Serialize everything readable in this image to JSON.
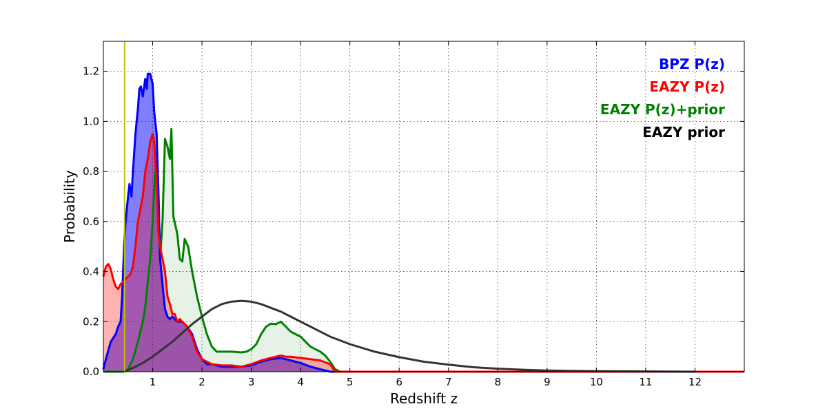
{
  "chart_data": {
    "type": "area",
    "title": "",
    "xlabel": "Redshift z",
    "ylabel": "Probability",
    "xlim": [
      0,
      13
    ],
    "ylim": [
      0,
      1.32
    ],
    "grid": true,
    "legend_position": "top-right",
    "xticks": [
      1,
      2,
      3,
      4,
      5,
      6,
      7,
      8,
      9,
      10,
      11,
      12
    ],
    "yticks": [
      0.0,
      0.2,
      0.4,
      0.6,
      0.8,
      1.0,
      1.2
    ],
    "vline": {
      "x": 0.43,
      "color": "#bfbf00"
    },
    "series": [
      {
        "name": "EAZY P(z)+prior",
        "color": "#008000",
        "fill": "#008000",
        "fill_opacity": 0.1,
        "points": [
          [
            0,
            0
          ],
          [
            0.4,
            0
          ],
          [
            0.5,
            0.01
          ],
          [
            0.6,
            0.05
          ],
          [
            0.7,
            0.12
          ],
          [
            0.8,
            0.2
          ],
          [
            0.85,
            0.26
          ],
          [
            0.9,
            0.36
          ],
          [
            0.95,
            0.45
          ],
          [
            1.0,
            0.6
          ],
          [
            1.05,
            0.8
          ],
          [
            1.08,
            0.82
          ],
          [
            1.12,
            0.6
          ],
          [
            1.15,
            0.45
          ],
          [
            1.2,
            0.6
          ],
          [
            1.25,
            0.93
          ],
          [
            1.3,
            0.9
          ],
          [
            1.35,
            0.85
          ],
          [
            1.38,
            0.97
          ],
          [
            1.42,
            0.62
          ],
          [
            1.5,
            0.55
          ],
          [
            1.55,
            0.45
          ],
          [
            1.6,
            0.44
          ],
          [
            1.65,
            0.53
          ],
          [
            1.72,
            0.5
          ],
          [
            1.8,
            0.4
          ],
          [
            1.9,
            0.3
          ],
          [
            2.0,
            0.22
          ],
          [
            2.1,
            0.15
          ],
          [
            2.2,
            0.1
          ],
          [
            2.3,
            0.08
          ],
          [
            2.4,
            0.08
          ],
          [
            2.6,
            0.08
          ],
          [
            2.8,
            0.077
          ],
          [
            2.9,
            0.08
          ],
          [
            3.0,
            0.09
          ],
          [
            3.1,
            0.11
          ],
          [
            3.2,
            0.15
          ],
          [
            3.3,
            0.18
          ],
          [
            3.4,
            0.192
          ],
          [
            3.5,
            0.19
          ],
          [
            3.6,
            0.2
          ],
          [
            3.7,
            0.18
          ],
          [
            3.8,
            0.16
          ],
          [
            3.9,
            0.15
          ],
          [
            4.0,
            0.14
          ],
          [
            4.1,
            0.12
          ],
          [
            4.2,
            0.1
          ],
          [
            4.3,
            0.09
          ],
          [
            4.4,
            0.08
          ],
          [
            4.5,
            0.065
          ],
          [
            4.6,
            0.04
          ],
          [
            4.7,
            0.01
          ],
          [
            4.8,
            0.0
          ],
          [
            12,
            0
          ]
        ]
      },
      {
        "name": "BPZ P(z)",
        "color": "#0000ff",
        "fill": "#0000ff",
        "fill_opacity": 0.5,
        "points": [
          [
            0,
            0.01
          ],
          [
            0.05,
            0.05
          ],
          [
            0.15,
            0.12
          ],
          [
            0.25,
            0.15
          ],
          [
            0.3,
            0.18
          ],
          [
            0.35,
            0.2
          ],
          [
            0.38,
            0.3
          ],
          [
            0.42,
            0.5
          ],
          [
            0.45,
            0.6
          ],
          [
            0.5,
            0.7
          ],
          [
            0.53,
            0.75
          ],
          [
            0.57,
            0.7
          ],
          [
            0.6,
            0.8
          ],
          [
            0.65,
            0.95
          ],
          [
            0.7,
            1.05
          ],
          [
            0.73,
            1.13
          ],
          [
            0.76,
            1.14
          ],
          [
            0.8,
            1.1
          ],
          [
            0.85,
            1.17
          ],
          [
            0.88,
            1.13
          ],
          [
            0.9,
            1.19
          ],
          [
            0.95,
            1.19
          ],
          [
            1.0,
            1.15
          ],
          [
            1.03,
            1.04
          ],
          [
            1.08,
            0.95
          ],
          [
            1.12,
            0.7
          ],
          [
            1.15,
            0.45
          ],
          [
            1.2,
            0.35
          ],
          [
            1.25,
            0.25
          ],
          [
            1.3,
            0.22
          ],
          [
            1.35,
            0.21
          ],
          [
            1.4,
            0.22
          ],
          [
            1.45,
            0.21
          ],
          [
            1.5,
            0.2
          ],
          [
            1.6,
            0.2
          ],
          [
            1.7,
            0.18
          ],
          [
            1.8,
            0.15
          ],
          [
            1.9,
            0.09
          ],
          [
            2.0,
            0.05
          ],
          [
            2.1,
            0.03
          ],
          [
            2.2,
            0.03
          ],
          [
            2.4,
            0.02
          ],
          [
            2.6,
            0.02
          ],
          [
            2.8,
            0.02
          ],
          [
            3.0,
            0.025
          ],
          [
            3.2,
            0.04
          ],
          [
            3.4,
            0.05
          ],
          [
            3.6,
            0.055
          ],
          [
            3.7,
            0.05
          ],
          [
            3.8,
            0.045
          ],
          [
            3.9,
            0.04
          ],
          [
            4.0,
            0.035
          ],
          [
            4.2,
            0.02
          ],
          [
            4.4,
            0.01
          ],
          [
            4.6,
            0.0
          ],
          [
            13,
            0.0
          ]
        ]
      },
      {
        "name": "EAZY P(z)",
        "color": "#ff0000",
        "fill": "#ff0000",
        "fill_opacity": 0.3,
        "points": [
          [
            0,
            0.38
          ],
          [
            0.05,
            0.42
          ],
          [
            0.1,
            0.43
          ],
          [
            0.15,
            0.41
          ],
          [
            0.2,
            0.37
          ],
          [
            0.25,
            0.34
          ],
          [
            0.3,
            0.33
          ],
          [
            0.35,
            0.35
          ],
          [
            0.4,
            0.36
          ],
          [
            0.45,
            0.37
          ],
          [
            0.5,
            0.38
          ],
          [
            0.55,
            0.39
          ],
          [
            0.6,
            0.42
          ],
          [
            0.65,
            0.5
          ],
          [
            0.7,
            0.6
          ],
          [
            0.75,
            0.65
          ],
          [
            0.8,
            0.7
          ],
          [
            0.85,
            0.8
          ],
          [
            0.9,
            0.85
          ],
          [
            0.95,
            0.92
          ],
          [
            1.0,
            0.95
          ],
          [
            1.03,
            0.92
          ],
          [
            1.07,
            0.8
          ],
          [
            1.12,
            0.55
          ],
          [
            1.15,
            0.5
          ],
          [
            1.2,
            0.45
          ],
          [
            1.25,
            0.4
          ],
          [
            1.3,
            0.3
          ],
          [
            1.35,
            0.27
          ],
          [
            1.4,
            0.23
          ],
          [
            1.45,
            0.23
          ],
          [
            1.5,
            0.2
          ],
          [
            1.55,
            0.21
          ],
          [
            1.6,
            0.2
          ],
          [
            1.7,
            0.18
          ],
          [
            1.8,
            0.14
          ],
          [
            1.9,
            0.08
          ],
          [
            2.0,
            0.05
          ],
          [
            2.1,
            0.04
          ],
          [
            2.2,
            0.03
          ],
          [
            2.4,
            0.025
          ],
          [
            2.6,
            0.025
          ],
          [
            2.8,
            0.02
          ],
          [
            3.0,
            0.03
          ],
          [
            3.2,
            0.045
          ],
          [
            3.4,
            0.055
          ],
          [
            3.6,
            0.065
          ],
          [
            3.7,
            0.06
          ],
          [
            3.8,
            0.06
          ],
          [
            4.0,
            0.055
          ],
          [
            4.2,
            0.05
          ],
          [
            4.4,
            0.045
          ],
          [
            4.6,
            0.03
          ],
          [
            4.7,
            0.0
          ],
          [
            13,
            0.0
          ]
        ]
      },
      {
        "name": "EAZY prior",
        "color": "#333333",
        "fill": "none",
        "fill_opacity": 0,
        "points": [
          [
            0.43,
            0.0
          ],
          [
            0.6,
            0.015
          ],
          [
            0.8,
            0.035
          ],
          [
            1.0,
            0.06
          ],
          [
            1.2,
            0.09
          ],
          [
            1.4,
            0.12
          ],
          [
            1.6,
            0.155
          ],
          [
            1.8,
            0.19
          ],
          [
            2.0,
            0.22
          ],
          [
            2.2,
            0.25
          ],
          [
            2.4,
            0.27
          ],
          [
            2.6,
            0.28
          ],
          [
            2.8,
            0.283
          ],
          [
            3.0,
            0.28
          ],
          [
            3.2,
            0.27
          ],
          [
            3.4,
            0.255
          ],
          [
            3.6,
            0.24
          ],
          [
            3.8,
            0.22
          ],
          [
            4.0,
            0.2
          ],
          [
            4.2,
            0.18
          ],
          [
            4.4,
            0.16
          ],
          [
            4.6,
            0.14
          ],
          [
            4.8,
            0.125
          ],
          [
            5.0,
            0.11
          ],
          [
            5.5,
            0.08
          ],
          [
            6.0,
            0.058
          ],
          [
            6.5,
            0.04
          ],
          [
            7.0,
            0.028
          ],
          [
            7.5,
            0.018
          ],
          [
            8.0,
            0.012
          ],
          [
            8.5,
            0.008
          ],
          [
            9.0,
            0.005
          ],
          [
            9.5,
            0.003
          ],
          [
            10.0,
            0.002
          ],
          [
            11.0,
            0.001
          ],
          [
            12.0,
            0.0
          ]
        ]
      }
    ],
    "legend": [
      {
        "label": "BPZ P(z)",
        "color": "#0000ff"
      },
      {
        "label": "EAZY P(z)",
        "color": "#ff0000"
      },
      {
        "label": "EAZY P(z)+prior",
        "color": "#008000"
      },
      {
        "label": "EAZY prior",
        "color": "#000000"
      }
    ]
  }
}
